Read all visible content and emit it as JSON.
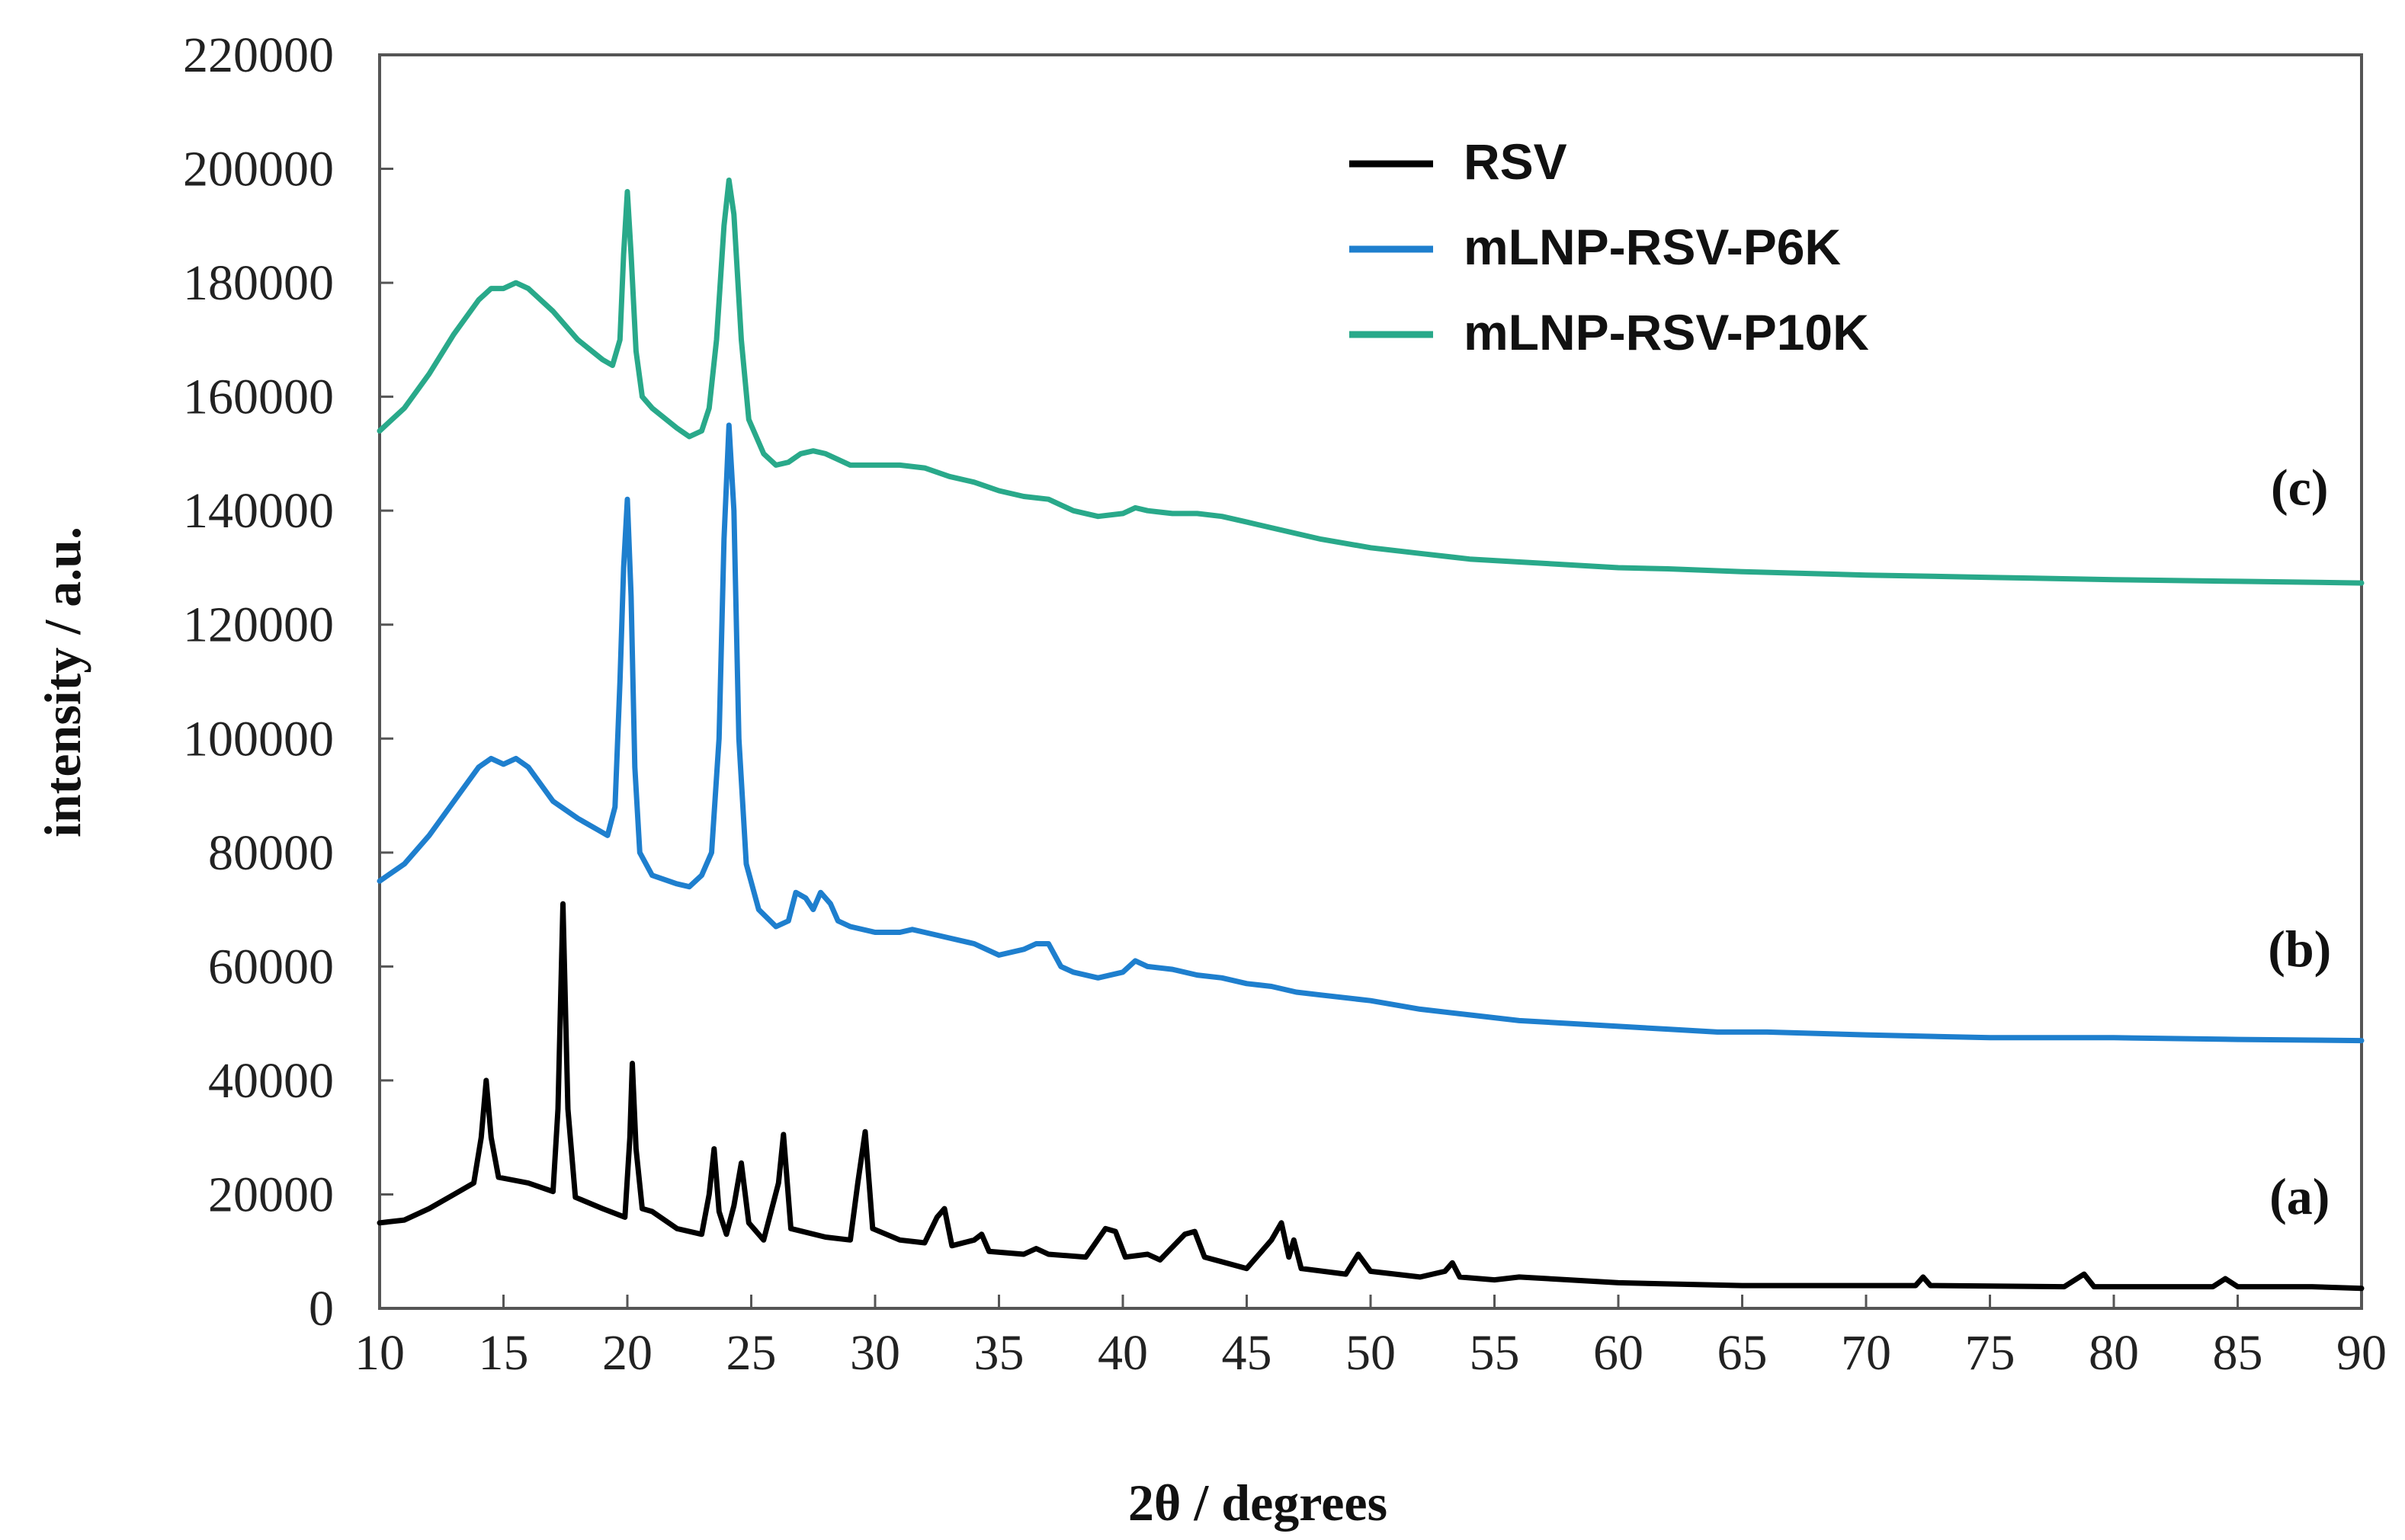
{
  "chart_data": {
    "type": "line",
    "title": "",
    "xlabel": "2θ / degrees",
    "ylabel": "intensity / a.u.",
    "xlim": [
      10,
      90
    ],
    "ylim": [
      0,
      220000
    ],
    "x_ticks": [
      10,
      15,
      20,
      25,
      30,
      35,
      40,
      45,
      50,
      55,
      60,
      65,
      70,
      75,
      80,
      85,
      90
    ],
    "y_ticks": [
      0,
      20000,
      40000,
      60000,
      80000,
      100000,
      120000,
      140000,
      160000,
      180000,
      200000,
      220000
    ],
    "grid": false,
    "legend_position": "top-right",
    "series": [
      {
        "name": "RSV",
        "color": "#000000",
        "label": "(a)",
        "points": [
          [
            10,
            15000
          ],
          [
            11,
            15500
          ],
          [
            12,
            17500
          ],
          [
            13,
            20000
          ],
          [
            13.8,
            22000
          ],
          [
            14.1,
            30000
          ],
          [
            14.3,
            40000
          ],
          [
            14.5,
            30000
          ],
          [
            14.8,
            23000
          ],
          [
            16,
            22000
          ],
          [
            17,
            20500
          ],
          [
            17.2,
            35000
          ],
          [
            17.4,
            71000
          ],
          [
            17.6,
            35000
          ],
          [
            17.9,
            19500
          ],
          [
            19,
            17500
          ],
          [
            19.9,
            16000
          ],
          [
            20.1,
            30000
          ],
          [
            20.2,
            43000
          ],
          [
            20.35,
            28000
          ],
          [
            20.6,
            17500
          ],
          [
            21,
            17000
          ],
          [
            22,
            14000
          ],
          [
            23,
            13000
          ],
          [
            23.3,
            20000
          ],
          [
            23.5,
            28000
          ],
          [
            23.7,
            17000
          ],
          [
            24,
            13000
          ],
          [
            24.3,
            18000
          ],
          [
            24.6,
            25500
          ],
          [
            24.9,
            15000
          ],
          [
            25.5,
            12000
          ],
          [
            26.1,
            22000
          ],
          [
            26.3,
            30500
          ],
          [
            26.6,
            14000
          ],
          [
            28,
            12500
          ],
          [
            29,
            12000
          ],
          [
            29.3,
            22000
          ],
          [
            29.6,
            31000
          ],
          [
            29.9,
            14000
          ],
          [
            31,
            12000
          ],
          [
            32,
            11500
          ],
          [
            32.5,
            16000
          ],
          [
            32.8,
            17500
          ],
          [
            33.1,
            11000
          ],
          [
            34,
            12000
          ],
          [
            34.3,
            13000
          ],
          [
            34.6,
            10000
          ],
          [
            36,
            9500
          ],
          [
            36.5,
            10500
          ],
          [
            37,
            9500
          ],
          [
            38.5,
            9000
          ],
          [
            39.3,
            14000
          ],
          [
            39.7,
            13500
          ],
          [
            40.1,
            9000
          ],
          [
            41,
            9500
          ],
          [
            41.5,
            8500
          ],
          [
            42.5,
            13000
          ],
          [
            42.9,
            13500
          ],
          [
            43.3,
            9000
          ],
          [
            45,
            7000
          ],
          [
            46,
            12000
          ],
          [
            46.4,
            15000
          ],
          [
            46.7,
            9000
          ],
          [
            46.9,
            12000
          ],
          [
            47.2,
            7000
          ],
          [
            49,
            6000
          ],
          [
            49.5,
            9500
          ],
          [
            50,
            6500
          ],
          [
            52,
            5500
          ],
          [
            53,
            6500
          ],
          [
            53.3,
            8000
          ],
          [
            53.6,
            5500
          ],
          [
            55,
            5000
          ],
          [
            56,
            5500
          ],
          [
            58,
            5000
          ],
          [
            60,
            4500
          ],
          [
            65,
            4000
          ],
          [
            70,
            4000
          ],
          [
            72,
            4000
          ],
          [
            72.3,
            5500
          ],
          [
            72.6,
            4000
          ],
          [
            78,
            3800
          ],
          [
            78.8,
            6000
          ],
          [
            79.2,
            3800
          ],
          [
            84,
            3800
          ],
          [
            84.5,
            5200
          ],
          [
            85,
            3800
          ],
          [
            88,
            3800
          ],
          [
            90,
            3500
          ]
        ]
      },
      {
        "name": "mLNP-RSV-P6K",
        "color": "#1e7fce",
        "label": "(b)",
        "points": [
          [
            10,
            75000
          ],
          [
            11,
            78000
          ],
          [
            12,
            83000
          ],
          [
            13,
            89000
          ],
          [
            14,
            95000
          ],
          [
            14.5,
            96500
          ],
          [
            15,
            95500
          ],
          [
            15.5,
            96500
          ],
          [
            16,
            95000
          ],
          [
            17,
            89000
          ],
          [
            18,
            86000
          ],
          [
            18.8,
            84000
          ],
          [
            19.2,
            83000
          ],
          [
            19.5,
            88000
          ],
          [
            19.7,
            110000
          ],
          [
            19.85,
            130000
          ],
          [
            20,
            142000
          ],
          [
            20.15,
            125000
          ],
          [
            20.3,
            95000
          ],
          [
            20.5,
            80000
          ],
          [
            21,
            76000
          ],
          [
            22,
            74500
          ],
          [
            22.5,
            74000
          ],
          [
            23,
            76000
          ],
          [
            23.4,
            80000
          ],
          [
            23.7,
            100000
          ],
          [
            23.9,
            135000
          ],
          [
            24.1,
            155000
          ],
          [
            24.3,
            140000
          ],
          [
            24.5,
            100000
          ],
          [
            24.8,
            78000
          ],
          [
            25.3,
            70000
          ],
          [
            26,
            67000
          ],
          [
            26.5,
            68000
          ],
          [
            26.8,
            73000
          ],
          [
            27.2,
            72000
          ],
          [
            27.5,
            70000
          ],
          [
            27.8,
            73000
          ],
          [
            28.2,
            71000
          ],
          [
            28.5,
            68000
          ],
          [
            29,
            67000
          ],
          [
            30,
            66000
          ],
          [
            31,
            66000
          ],
          [
            31.5,
            66500
          ],
          [
            32,
            66000
          ],
          [
            33,
            65000
          ],
          [
            34,
            64000
          ],
          [
            35,
            62000
          ],
          [
            36,
            63000
          ],
          [
            36.5,
            64000
          ],
          [
            37,
            64000
          ],
          [
            37.5,
            60000
          ],
          [
            38,
            59000
          ],
          [
            39,
            58000
          ],
          [
            40,
            59000
          ],
          [
            40.5,
            61000
          ],
          [
            41,
            60000
          ],
          [
            42,
            59500
          ],
          [
            43,
            58500
          ],
          [
            44,
            58000
          ],
          [
            45,
            57000
          ],
          [
            46,
            56500
          ],
          [
            47,
            55500
          ],
          [
            48,
            55000
          ],
          [
            50,
            54000
          ],
          [
            52,
            52500
          ],
          [
            54,
            51500
          ],
          [
            56,
            50500
          ],
          [
            58,
            50000
          ],
          [
            60,
            49500
          ],
          [
            62,
            49000
          ],
          [
            64,
            48500
          ],
          [
            66,
            48500
          ],
          [
            70,
            48000
          ],
          [
            75,
            47500
          ],
          [
            80,
            47500
          ],
          [
            85,
            47200
          ],
          [
            90,
            47000
          ]
        ]
      },
      {
        "name": "mLNP-RSV-P10K",
        "color": "#29a98a",
        "label": "(c)",
        "points": [
          [
            10,
            154000
          ],
          [
            11,
            158000
          ],
          [
            12,
            164000
          ],
          [
            13,
            171000
          ],
          [
            14,
            177000
          ],
          [
            14.5,
            179000
          ],
          [
            15,
            179000
          ],
          [
            15.5,
            180000
          ],
          [
            16,
            179000
          ],
          [
            17,
            175000
          ],
          [
            18,
            170000
          ],
          [
            19,
            166500
          ],
          [
            19.4,
            165500
          ],
          [
            19.7,
            170000
          ],
          [
            19.85,
            185000
          ],
          [
            20,
            196000
          ],
          [
            20.15,
            185000
          ],
          [
            20.35,
            168000
          ],
          [
            20.6,
            160000
          ],
          [
            21,
            158000
          ],
          [
            22,
            154500
          ],
          [
            22.5,
            153000
          ],
          [
            23,
            154000
          ],
          [
            23.3,
            158000
          ],
          [
            23.6,
            170000
          ],
          [
            23.9,
            190000
          ],
          [
            24.1,
            198000
          ],
          [
            24.3,
            192000
          ],
          [
            24.6,
            170000
          ],
          [
            24.9,
            156000
          ],
          [
            25.5,
            150000
          ],
          [
            26,
            148000
          ],
          [
            26.5,
            148500
          ],
          [
            27,
            150000
          ],
          [
            27.5,
            150500
          ],
          [
            28,
            150000
          ],
          [
            28.5,
            149000
          ],
          [
            29,
            148000
          ],
          [
            30,
            148000
          ],
          [
            31,
            148000
          ],
          [
            32,
            147500
          ],
          [
            33,
            146000
          ],
          [
            34,
            145000
          ],
          [
            35,
            143500
          ],
          [
            36,
            142500
          ],
          [
            37,
            142000
          ],
          [
            38,
            140000
          ],
          [
            39,
            139000
          ],
          [
            40,
            139500
          ],
          [
            40.5,
            140500
          ],
          [
            41,
            140000
          ],
          [
            42,
            139500
          ],
          [
            43,
            139500
          ],
          [
            44,
            139000
          ],
          [
            45,
            138000
          ],
          [
            46,
            137000
          ],
          [
            47,
            136000
          ],
          [
            48,
            135000
          ],
          [
            50,
            133500
          ],
          [
            52,
            132500
          ],
          [
            54,
            131500
          ],
          [
            56,
            131000
          ],
          [
            58,
            130500
          ],
          [
            60,
            130000
          ],
          [
            62,
            129800
          ],
          [
            65,
            129300
          ],
          [
            70,
            128700
          ],
          [
            75,
            128300
          ],
          [
            80,
            127900
          ],
          [
            85,
            127600
          ],
          [
            90,
            127300
          ]
        ]
      }
    ],
    "annotations": [
      {
        "text": "(a)",
        "x": 87.5,
        "y": 19500
      },
      {
        "text": "(b)",
        "x": 87.5,
        "y": 63000
      },
      {
        "text": "(c)",
        "x": 87.5,
        "y": 144000
      }
    ]
  }
}
